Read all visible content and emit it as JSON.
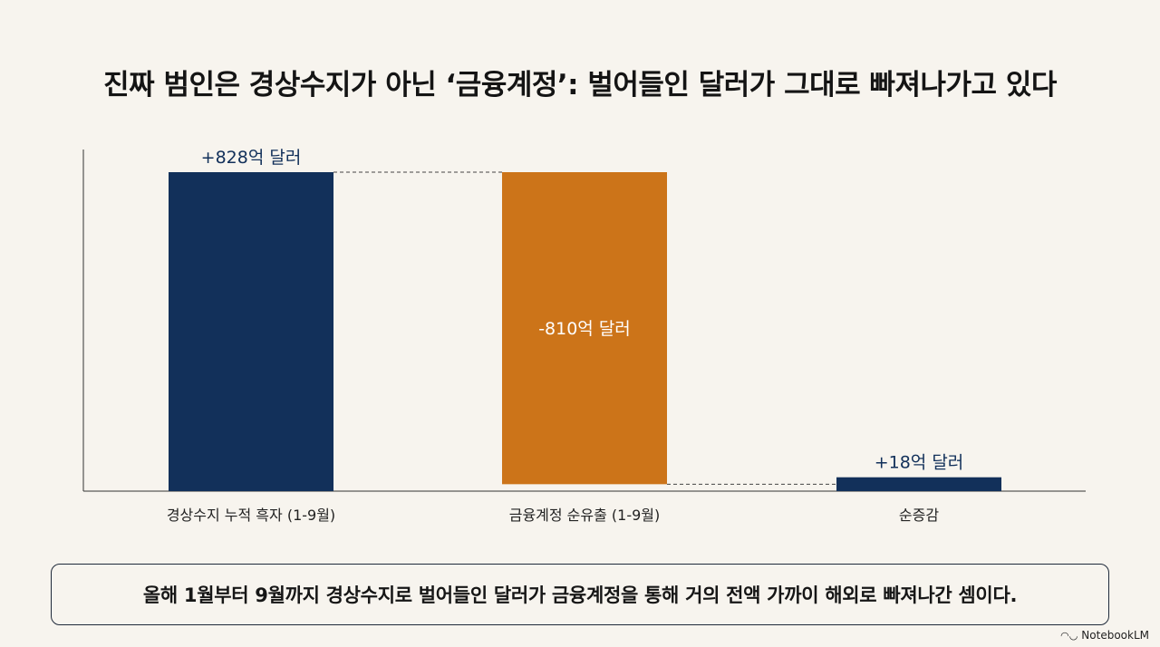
{
  "title": "진짜 범인은 경상수지가 아닌 ‘금융계정’: 벌어들인 달러가 그대로 빠져나가고 있다",
  "caption": "올해 1월부터 9월까지 경상수지로 벌어들인 달러가 금융계정을 통해 거의 전액 가까이 해외로 빠져나간 셈이다.",
  "branding": "NotebookLM",
  "chart_data": {
    "type": "bar",
    "subtype": "waterfall",
    "categories": [
      "경상수지 누적 흑자 (1-9월)",
      "금융계정 순유출 (1-9월)",
      "순증감"
    ],
    "values": [
      828,
      -810,
      18
    ],
    "labels": [
      "+828억 달러",
      "-810억 달러",
      "+18억 달러"
    ],
    "colors": [
      "#12305a",
      "#cc7419",
      "#12305a"
    ],
    "connectors": true,
    "unit": "억 달러",
    "grid": false
  }
}
